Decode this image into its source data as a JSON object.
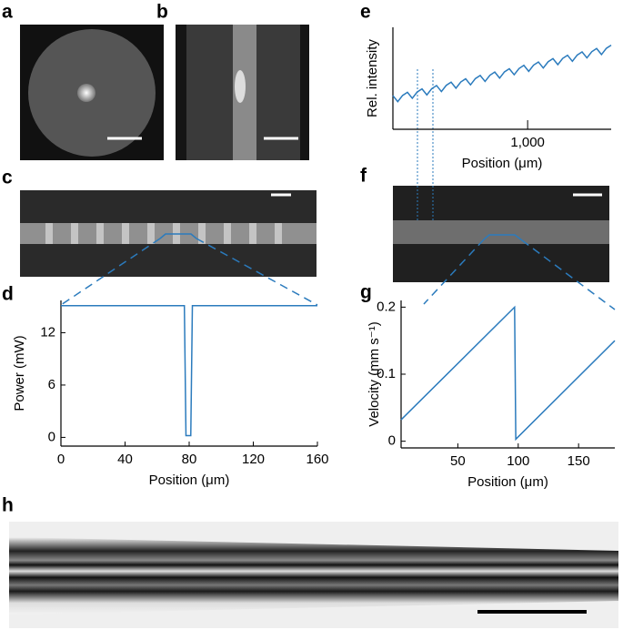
{
  "panel_labels": [
    "a",
    "b",
    "c",
    "d",
    "e",
    "f",
    "g",
    "h"
  ],
  "chart_data": [
    {
      "type": "line",
      "x_label": "Position (μm)",
      "y_label": "Power (mW)",
      "x": [
        0,
        77,
        78,
        81,
        82,
        160
      ],
      "series": [
        {
          "color": "#2b7bbd",
          "values": [
            15.1,
            15.1,
            0.2,
            0.2,
            15.1,
            15.1
          ]
        }
      ],
      "xlim": [
        0,
        160
      ],
      "xticks": [
        0,
        40,
        80,
        120,
        160
      ],
      "ylim": [
        -1,
        15.7
      ],
      "yticks": [
        0,
        6,
        12
      ]
    },
    {
      "type": "line",
      "x_label": "Position (μm)",
      "y_label": "Rel. intensity",
      "x": [
        0,
        36,
        72,
        108,
        144,
        180,
        216,
        252,
        288,
        324,
        360,
        396,
        432,
        468,
        504,
        540,
        576,
        612,
        648,
        684,
        720,
        756,
        792,
        828,
        864,
        900,
        936,
        972,
        1008,
        1044,
        1080,
        1116,
        1152,
        1188,
        1224,
        1260,
        1296,
        1332,
        1368,
        1404,
        1440,
        1476,
        1512,
        1548,
        1584,
        1620
      ],
      "series": [
        {
          "color": "#2b7bbd",
          "values": [
            0.33,
            0.271,
            0.332,
            0.363,
            0.304,
            0.365,
            0.396,
            0.337,
            0.398,
            0.429,
            0.37,
            0.431,
            0.462,
            0.403,
            0.464,
            0.495,
            0.436,
            0.497,
            0.528,
            0.469,
            0.53,
            0.561,
            0.502,
            0.563,
            0.594,
            0.535,
            0.596,
            0.627,
            0.568,
            0.629,
            0.66,
            0.601,
            0.662,
            0.693,
            0.634,
            0.695,
            0.726,
            0.667,
            0.728,
            0.759,
            0.7,
            0.761,
            0.792,
            0.733,
            0.794,
            0.825
          ]
        }
      ],
      "xlim": [
        0,
        1620
      ],
      "xticks": [
        {
          "value": 1000,
          "label": "1,000"
        }
      ],
      "ylim": [
        0,
        1
      ],
      "yticks": []
    },
    {
      "type": "line",
      "x_label": "Position (μm)",
      "y_label": "Velocity (mm s⁻¹)",
      "x": [
        3,
        97,
        98,
        180
      ],
      "series": [
        {
          "color": "#2b7bbd",
          "values": [
            0.032,
            0.2,
            0.003,
            0.15
          ]
        }
      ],
      "xlim": [
        3,
        180
      ],
      "xticks": [
        50,
        100,
        150
      ],
      "ylim": [
        -0.01,
        0.21
      ],
      "yticks": [
        0,
        0.1,
        0.2
      ]
    }
  ]
}
